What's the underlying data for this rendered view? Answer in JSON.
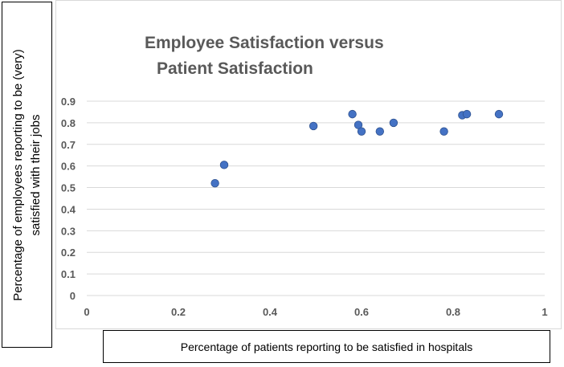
{
  "chart_data": {
    "type": "scatter",
    "title": "Employee Satisfaction versus Patient Satisfaction",
    "title_lines": [
      "Employee Satisfaction versus",
      "Patient Satisfaction"
    ],
    "xlabel": "Percentage of patients reporting to be satisfied in hospitals",
    "ylabel": "Percentage of employees reporting to be  (very)\nsatisfied with their jobs",
    "xlim": [
      0,
      1
    ],
    "ylim": [
      0,
      0.9
    ],
    "xticks": [
      0,
      0.2,
      0.4,
      0.6,
      0.8,
      1
    ],
    "xtick_labels": [
      "0",
      "0.2",
      "0.4",
      "0.6",
      "0.8",
      "1"
    ],
    "yticks": [
      0,
      0.1,
      0.2,
      0.3,
      0.4,
      0.5,
      0.6,
      0.7,
      0.8,
      0.9
    ],
    "ytick_labels": [
      "0",
      "0.1",
      "0.2",
      "0.3",
      "0.4",
      "0.5",
      "0.6",
      "0.7",
      "0.8",
      "0.9"
    ],
    "grid": "horizontal",
    "marker_color": "#4472c4",
    "grid_color": "#d9d9d9",
    "points": [
      {
        "x": 0.28,
        "y": 0.52
      },
      {
        "x": 0.3,
        "y": 0.605
      },
      {
        "x": 0.495,
        "y": 0.785
      },
      {
        "x": 0.58,
        "y": 0.84
      },
      {
        "x": 0.593,
        "y": 0.79
      },
      {
        "x": 0.6,
        "y": 0.76
      },
      {
        "x": 0.64,
        "y": 0.76
      },
      {
        "x": 0.67,
        "y": 0.8
      },
      {
        "x": 0.78,
        "y": 0.76
      },
      {
        "x": 0.82,
        "y": 0.835
      },
      {
        "x": 0.83,
        "y": 0.84
      },
      {
        "x": 0.9,
        "y": 0.84
      }
    ]
  }
}
